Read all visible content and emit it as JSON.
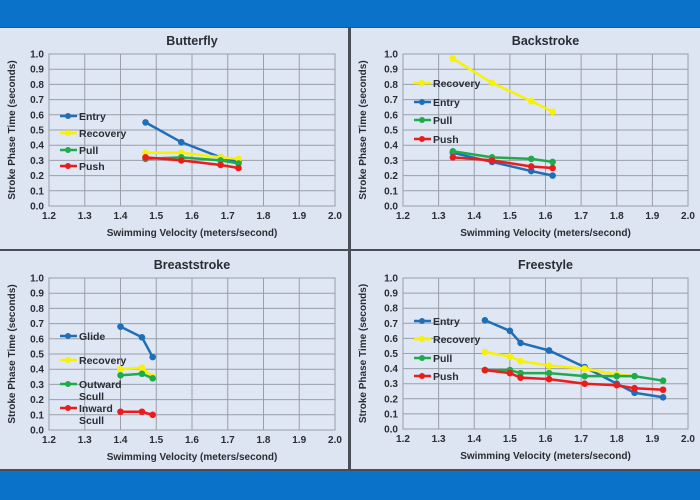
{
  "colors": {
    "entry_glide": "#1f6fb8",
    "recovery": "#f7f200",
    "pull_outward": "#1fab4c",
    "push_inward": "#ec1c1c",
    "panel_bg": "#dde4f2",
    "frame_bg": "#0b72c9"
  },
  "chart_data": [
    {
      "type": "line",
      "title": "Butterfly",
      "xlabel": "Swimming Velocity (meters/second)",
      "ylabel": "Stroke Phase Time (seconds)",
      "xlim": [
        1.2,
        2.0
      ],
      "ylim": [
        0.0,
        1.0
      ],
      "xticks": [
        "1.2",
        "1.3",
        "1.4",
        "1.5",
        "1.6",
        "1.7",
        "1.8",
        "1.9",
        "2.0"
      ],
      "yticks": [
        "0.0",
        "0.1",
        "0.2",
        "0.3",
        "0.4",
        "0.5",
        "0.6",
        "0.7",
        "0.8",
        "0.9",
        "1.0"
      ],
      "grid": true,
      "legend": "left",
      "x": [
        1.47,
        1.57,
        1.68,
        1.73
      ],
      "series": [
        {
          "name": "Entry",
          "color": "#1f6fb8",
          "values": [
            0.55,
            0.42,
            0.32,
            0.29
          ]
        },
        {
          "name": "Recovery",
          "color": "#f7f200",
          "values": [
            0.35,
            0.35,
            0.32,
            0.31
          ]
        },
        {
          "name": "Pull",
          "color": "#1fab4c",
          "values": [
            0.31,
            0.32,
            0.3,
            0.28
          ]
        },
        {
          "name": "Push",
          "color": "#ec1c1c",
          "values": [
            0.32,
            0.3,
            0.27,
            0.25
          ]
        }
      ]
    },
    {
      "type": "line",
      "title": "Backstroke",
      "xlabel": "Swimming Velocity (meters/second)",
      "ylabel": "Stroke Phase Time (seconds)",
      "xlim": [
        1.2,
        2.0
      ],
      "ylim": [
        0.0,
        1.0
      ],
      "xticks": [
        "1.2",
        "1.3",
        "1.4",
        "1.5",
        "1.6",
        "1.7",
        "1.8",
        "1.9",
        "2.0"
      ],
      "yticks": [
        "0.0",
        "0.1",
        "0.2",
        "0.3",
        "0.4",
        "0.5",
        "0.6",
        "0.7",
        "0.8",
        "0.9",
        "1.0"
      ],
      "grid": true,
      "legend": "left",
      "x": [
        1.34,
        1.45,
        1.56,
        1.62
      ],
      "series": [
        {
          "name": "Recovery",
          "color": "#f7f200",
          "values": [
            0.97,
            0.81,
            0.69,
            0.62
          ]
        },
        {
          "name": "Entry",
          "color": "#1f6fb8",
          "values": [
            0.35,
            0.29,
            0.23,
            0.2
          ]
        },
        {
          "name": "Pull",
          "color": "#1fab4c",
          "values": [
            0.36,
            0.32,
            0.31,
            0.29
          ]
        },
        {
          "name": "Push",
          "color": "#ec1c1c",
          "values": [
            0.32,
            0.3,
            0.26,
            0.25
          ]
        }
      ]
    },
    {
      "type": "line",
      "title": "Breaststroke",
      "xlabel": "Swimming Velocity (meters/second)",
      "ylabel": "Stroke Phase Time (seconds)",
      "xlim": [
        1.2,
        2.0
      ],
      "ylim": [
        0.0,
        1.0
      ],
      "xticks": [
        "1.2",
        "1.3",
        "1.4",
        "1.5",
        "1.6",
        "1.7",
        "1.8",
        "1.9",
        "2.0"
      ],
      "yticks": [
        "0.0",
        "0.1",
        "0.2",
        "0.3",
        "0.4",
        "0.5",
        "0.6",
        "0.7",
        "0.8",
        "0.9",
        "1.0"
      ],
      "grid": true,
      "legend": "left",
      "x": [
        1.4,
        1.46,
        1.49
      ],
      "series": [
        {
          "name": "Glide",
          "color": "#1f6fb8",
          "values": [
            0.68,
            0.61,
            0.48
          ]
        },
        {
          "name": "Recovery",
          "color": "#f7f200",
          "values": [
            0.4,
            0.41,
            0.35
          ]
        },
        {
          "name": "Outward Scull",
          "color": "#1fab4c",
          "values": [
            0.36,
            0.37,
            0.34
          ]
        },
        {
          "name": "Inward Scull",
          "color": "#ec1c1c",
          "values": [
            0.12,
            0.12,
            0.1
          ]
        }
      ]
    },
    {
      "type": "line",
      "title": "Freestyle",
      "xlabel": "Swimming Velocity (meters/second)",
      "ylabel": "Stroke Phase Time (seconds)",
      "xlim": [
        1.2,
        2.0
      ],
      "ylim": [
        0.0,
        1.0
      ],
      "xticks": [
        "1.2",
        "1.3",
        "1.4",
        "1.5",
        "1.6",
        "1.7",
        "1.8",
        "1.9",
        "2.0"
      ],
      "yticks": [
        "0.0",
        "0.1",
        "0.2",
        "0.3",
        "0.4",
        "0.5",
        "0.6",
        "0.7",
        "0.8",
        "0.9",
        "1.0"
      ],
      "grid": true,
      "legend": "left",
      "x": [
        1.43,
        1.5,
        1.53,
        1.61,
        1.71,
        1.8,
        1.85,
        1.93
      ],
      "series": [
        {
          "name": "Entry",
          "color": "#1f6fb8",
          "values": [
            0.72,
            0.65,
            0.57,
            0.52,
            0.41,
            0.3,
            0.24,
            0.21
          ]
        },
        {
          "name": "Recovery",
          "color": "#f7f200",
          "values": [
            0.51,
            0.48,
            0.45,
            0.42,
            0.4,
            0.36,
            0.35,
            null
          ]
        },
        {
          "name": "Pull",
          "color": "#1fab4c",
          "values": [
            0.39,
            0.39,
            0.37,
            0.37,
            0.35,
            0.35,
            0.35,
            0.32
          ]
        },
        {
          "name": "Push",
          "color": "#ec1c1c",
          "values": [
            0.39,
            0.37,
            0.34,
            0.33,
            0.3,
            0.29,
            0.27,
            0.26
          ]
        }
      ]
    }
  ]
}
